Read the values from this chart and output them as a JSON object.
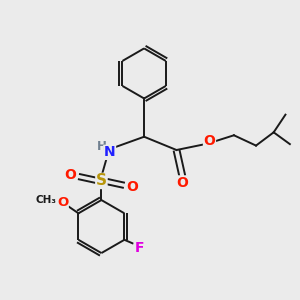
{
  "bg_color": "#ebebeb",
  "bond_color": "#1a1a1a",
  "bond_width": 1.4,
  "atom_colors": {
    "N": "#2020ff",
    "O": "#ff1a00",
    "S": "#b8960a",
    "F": "#e000e0",
    "H": "#708090",
    "C": "#1a1a1a"
  },
  "fig_size": [
    3.0,
    3.0
  ],
  "dpi": 100
}
